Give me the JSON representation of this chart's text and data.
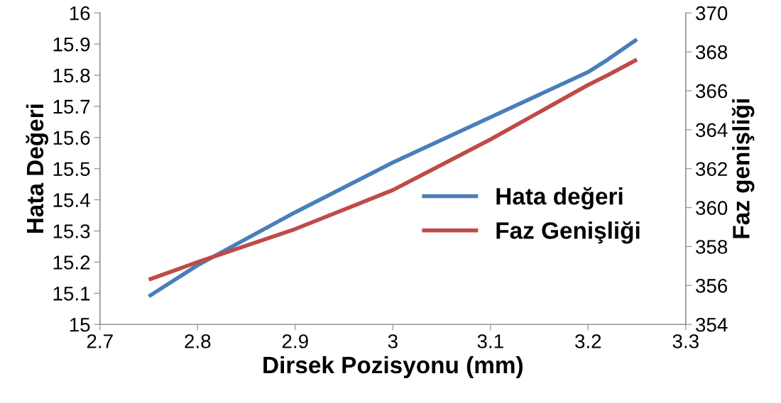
{
  "chart_data": {
    "type": "line",
    "xlabel": "Dirsek Pozisyonu (mm)",
    "ylabel": "Hata Değeri",
    "y2label": "Faz genişliği",
    "x": [
      2.75,
      2.8,
      2.9,
      3.0,
      3.1,
      3.2,
      3.22,
      3.25
    ],
    "series": [
      {
        "name": "Hata değeri",
        "color": "#4a7ebb",
        "values": [
          15.09,
          15.19,
          15.36,
          15.52,
          15.665,
          15.81,
          15.85,
          15.915
        ]
      },
      {
        "name": "Faz Genişliği",
        "color": "#be4b48",
        "axis": "y2",
        "values": [
          356.3,
          357.2,
          358.9,
          360.9,
          363.5,
          366.3,
          366.8,
          367.6
        ]
      }
    ],
    "xlim": [
      2.7,
      3.3
    ],
    "xticks": [
      2.7,
      2.8,
      2.9,
      3,
      3.1,
      3.2,
      3.3
    ],
    "ylim": [
      15,
      16
    ],
    "yticks": [
      15,
      15.1,
      15.2,
      15.3,
      15.4,
      15.5,
      15.6,
      15.7,
      15.8,
      15.9,
      16
    ],
    "y2lim": [
      354,
      370
    ],
    "y2ticks": [
      354,
      356,
      358,
      360,
      362,
      364,
      366,
      368,
      370
    ],
    "grid": false,
    "legend": "right",
    "marker": "none",
    "line_style": "solid"
  }
}
